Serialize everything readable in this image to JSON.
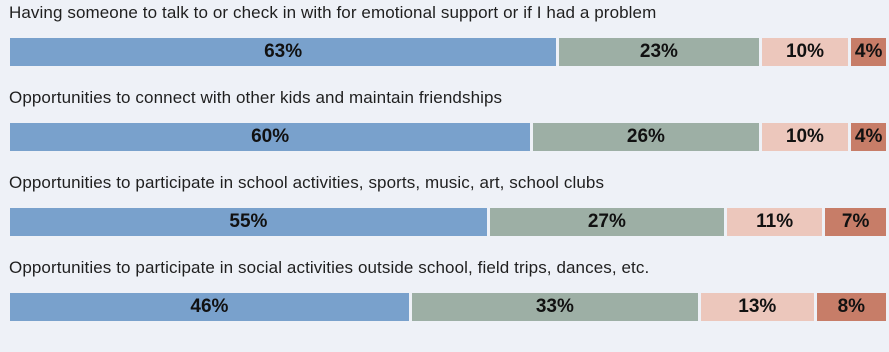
{
  "chart_data": {
    "type": "bar",
    "orientation": "horizontal",
    "stacked": true,
    "categories": [
      "Having someone to talk to or check in with for emotional support or if I had a problem",
      "Opportunities to connect with other kids and maintain friendships",
      "Opportunities to participate in school activities, sports, music, art, school clubs",
      "Opportunities to participate in social activities outside school, field trips, dances, etc."
    ],
    "series": [
      {
        "values": [
          63,
          60,
          55,
          46
        ],
        "color": "#79a1cc"
      },
      {
        "values": [
          23,
          26,
          27,
          33
        ],
        "color": "#9dafa5"
      },
      {
        "values": [
          10,
          10,
          11,
          13
        ],
        "color": "#ecc7bc"
      },
      {
        "values": [
          4,
          4,
          7,
          8
        ],
        "color": "#c77d68"
      }
    ],
    "value_suffix": "%",
    "xlim": [
      0,
      100
    ],
    "grid": false,
    "legend": "none"
  }
}
